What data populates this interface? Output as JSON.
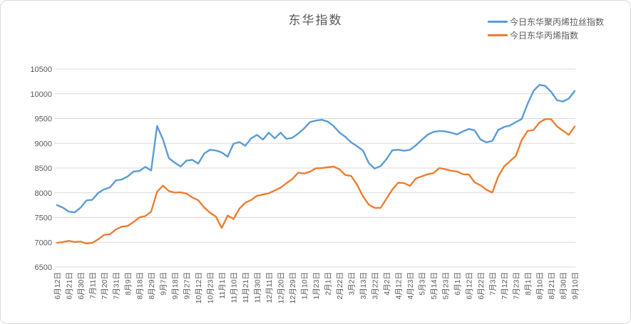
{
  "title": "东华指数",
  "colors": {
    "series1": "#5B9BD5",
    "series2": "#ED7D31",
    "grid": "#D9D9D9",
    "axis": "#D0D0D0",
    "text": "#595959",
    "frame_border": "#D9D9D9",
    "background": "#FFFFFF"
  },
  "chart_data": {
    "type": "line",
    "title": "东华指数",
    "xlabel": "",
    "ylabel": "",
    "ylim": [
      6500,
      10500
    ],
    "y_ticks": [
      6500,
      7000,
      7500,
      8000,
      8500,
      9000,
      9500,
      10000,
      10500
    ],
    "grid": "horizontal",
    "legend_position": "top-right",
    "x_tick_labels": [
      "6月12日",
      "6月21日",
      "6月30日",
      "7月11日",
      "7月20日",
      "7月31日",
      "8月9日",
      "8月18日",
      "8月29日",
      "9月7日",
      "9月18日",
      "9月27日",
      "10月12日",
      "10月23日",
      "11月1日",
      "11月10日",
      "11月21日",
      "11月30日",
      "12月11日",
      "12月20日",
      "12月29日",
      "1月10日",
      "1月23日",
      "2月1日",
      "2月22日",
      "3月2日",
      "3月13日",
      "3月22日",
      "4月2日",
      "4月12日",
      "4月23日",
      "5月3日",
      "5月14日",
      "5月23日",
      "6月1日",
      "6月12日",
      "6月22日",
      "7月3日",
      "7月12日",
      "7月23日",
      "8月1日",
      "8月10日",
      "8月21日",
      "8月30日",
      "9月10日"
    ],
    "samples_per_tick": 2,
    "series": [
      {
        "name": "今日东华聚丙烯拉丝指数",
        "color": "#5B9BD5",
        "values": [
          7750,
          7700,
          7620,
          7605,
          7700,
          7845,
          7860,
          8000,
          8070,
          8110,
          8250,
          8270,
          8330,
          8430,
          8440,
          8525,
          8450,
          9350,
          9080,
          8700,
          8610,
          8530,
          8650,
          8665,
          8590,
          8790,
          8870,
          8855,
          8815,
          8730,
          8990,
          9025,
          8950,
          9100,
          9170,
          9075,
          9215,
          9100,
          9215,
          9090,
          9110,
          9200,
          9300,
          9430,
          9460,
          9475,
          9440,
          9350,
          9220,
          9130,
          9020,
          8940,
          8855,
          8600,
          8490,
          8540,
          8680,
          8860,
          8870,
          8850,
          8870,
          8960,
          9070,
          9175,
          9230,
          9250,
          9240,
          9215,
          9180,
          9240,
          9290,
          9260,
          9075,
          9020,
          9050,
          9270,
          9330,
          9360,
          9430,
          9490,
          9800,
          10060,
          10180,
          10160,
          10040,
          9870,
          9845,
          9905,
          10055
        ]
      },
      {
        "name": "今日东华丙烯指数",
        "color": "#ED7D31",
        "values": [
          6990,
          7005,
          7030,
          7005,
          7015,
          6975,
          6990,
          7060,
          7150,
          7165,
          7260,
          7315,
          7330,
          7410,
          7505,
          7530,
          7620,
          8020,
          8145,
          8035,
          8005,
          8010,
          7985,
          7905,
          7850,
          7705,
          7600,
          7520,
          7290,
          7540,
          7470,
          7680,
          7800,
          7855,
          7940,
          7965,
          7990,
          8045,
          8105,
          8195,
          8280,
          8405,
          8390,
          8425,
          8495,
          8500,
          8515,
          8530,
          8475,
          8360,
          8340,
          8165,
          7930,
          7760,
          7695,
          7695,
          7880,
          8065,
          8205,
          8195,
          8140,
          8290,
          8330,
          8375,
          8400,
          8500,
          8475,
          8445,
          8430,
          8375,
          8370,
          8210,
          8150,
          8060,
          8005,
          8330,
          8530,
          8640,
          8745,
          9070,
          9250,
          9270,
          9420,
          9490,
          9485,
          9340,
          9255,
          9170,
          9340
        ]
      }
    ]
  }
}
